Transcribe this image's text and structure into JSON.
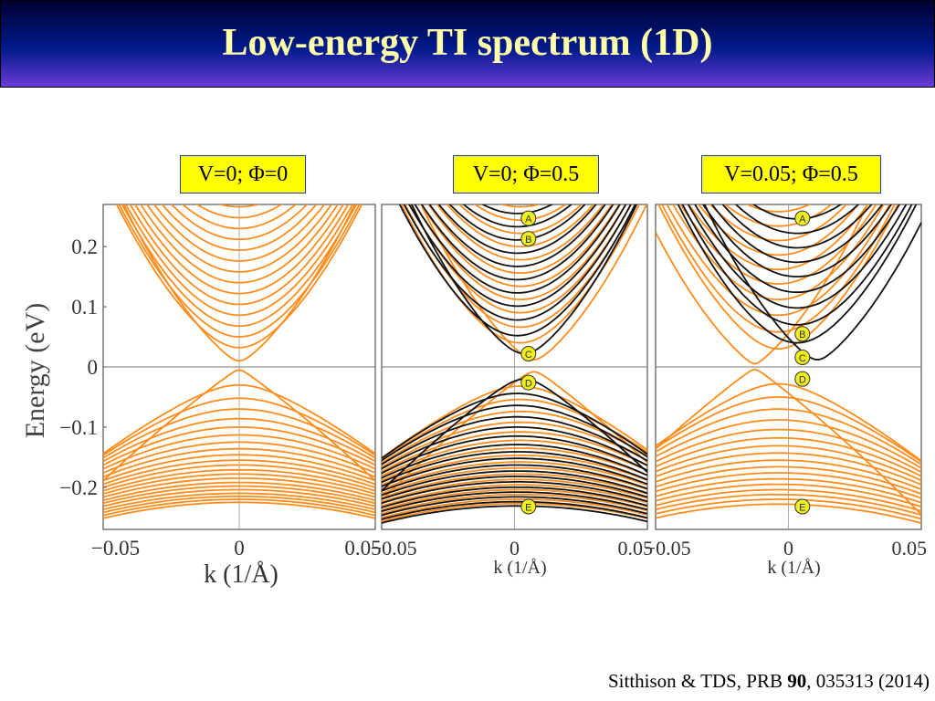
{
  "slide": {
    "title": "Low-energy TI spectrum (1D)",
    "citation": {
      "prefix": "Sitthison & TDS, PRB ",
      "volume": "90",
      "suffix": ", 035313 (2014)"
    }
  },
  "colors": {
    "orange_band": "#ff8c1a",
    "black_band": "#111111",
    "marker_fill": "#eeee22",
    "title_text": "#ffffaa",
    "caption_fill": "#ffff00"
  },
  "chart_data": [
    {
      "type": "line",
      "caption": "V=0; Φ=0",
      "xlabel": "k (1/Å)",
      "ylabel": "Energy (eV)",
      "xlim": [
        -0.055,
        0.055
      ],
      "ylim": [
        -0.27,
        0.27
      ],
      "xticks": [
        -0.05,
        0,
        0.05
      ],
      "xtick_labels": [
        "−0.05",
        "0",
        "0.05"
      ],
      "yticks": [
        0.2,
        0.1,
        0,
        -0.1,
        -0.2
      ],
      "ytick_labels": [
        "0.2",
        "0.1",
        "0",
        "−0.1",
        "−0.2"
      ],
      "markers": [],
      "series": [
        {
          "color": "orange",
          "gap_meV": 5,
          "kD": 0,
          "conduction_bottoms": [
            0.01,
            0.032,
            0.05,
            0.068,
            0.086,
            0.104,
            0.122,
            0.14,
            0.158,
            0.176,
            0.194,
            0.212,
            0.23,
            0.248,
            0.266
          ],
          "valence_tops": [
            -0.005,
            -0.03,
            -0.052,
            -0.07,
            -0.086,
            -0.1,
            -0.113,
            -0.125,
            -0.136,
            -0.146,
            -0.155,
            -0.163,
            -0.171,
            -0.178,
            -0.185,
            -0.192,
            -0.198,
            -0.204,
            -0.21,
            -0.215,
            -0.22,
            -0.225
          ]
        }
      ]
    },
    {
      "type": "line",
      "caption": "V=0; Φ=0.5",
      "xlabel": "k (1/Å)",
      "ylabel": "",
      "xlim": [
        -0.055,
        0.055
      ],
      "ylim": [
        -0.27,
        0.27
      ],
      "xticks": [
        -0.05,
        0,
        0.05
      ],
      "xtick_labels": [
        "−0.05",
        "0",
        "0.05"
      ],
      "yticks": [
        0.2,
        0.1,
        0,
        -0.1,
        -0.2
      ],
      "ytick_labels": [],
      "markers": [
        {
          "label": "A",
          "k": 0.002,
          "E": 0.247
        },
        {
          "label": "B",
          "k": 0.002,
          "E": 0.213
        },
        {
          "label": "C",
          "k": 0.002,
          "E": 0.022
        },
        {
          "label": "D",
          "k": 0.002,
          "E": -0.026
        },
        {
          "label": "E",
          "k": 0.002,
          "E": -0.232
        }
      ],
      "series": [
        {
          "color": "orange",
          "kD": 0.008,
          "conduction_bottoms": [
            0.012,
            0.04,
            0.066,
            0.09,
            0.112,
            0.134,
            0.156,
            0.178,
            0.2,
            0.222,
            0.244,
            0.266
          ],
          "valence_tops": [
            -0.008,
            -0.032,
            -0.054,
            -0.074,
            -0.092,
            -0.108,
            -0.122,
            -0.135,
            -0.147,
            -0.158,
            -0.168,
            -0.178,
            -0.187,
            -0.196,
            -0.204,
            -0.212,
            -0.22,
            -0.227
          ]
        },
        {
          "color": "black",
          "kD": 0.004,
          "conduction_bottoms": [
            0.022,
            0.052,
            0.078,
            0.101,
            0.123,
            0.145,
            0.167,
            0.189,
            0.211,
            0.233,
            0.255
          ],
          "valence_tops": [
            -0.02,
            -0.044,
            -0.064,
            -0.083,
            -0.1,
            -0.115,
            -0.129,
            -0.141,
            -0.152,
            -0.163,
            -0.173,
            -0.182,
            -0.191,
            -0.2,
            -0.208,
            -0.216,
            -0.224,
            -0.231
          ]
        }
      ]
    },
    {
      "type": "line",
      "caption": "V=0.05; Φ=0.5",
      "xlabel": "k (1/Å)",
      "ylabel": "",
      "xlim": [
        -0.055,
        0.055
      ],
      "ylim": [
        -0.27,
        0.27
      ],
      "xticks": [
        -0.05,
        0,
        0.05
      ],
      "xtick_labels": [
        "−0.05",
        "0",
        "0.05"
      ],
      "yticks": [
        0.2,
        0.1,
        0,
        -0.1,
        -0.2
      ],
      "ytick_labels": [],
      "markers": [
        {
          "label": "A",
          "k": 0.002,
          "E": 0.247
        },
        {
          "label": "B",
          "k": 0.002,
          "E": 0.055
        },
        {
          "label": "C",
          "k": 0.002,
          "E": 0.016
        },
        {
          "label": "D",
          "k": 0.002,
          "E": -0.02
        },
        {
          "label": "E",
          "k": 0.002,
          "E": -0.232
        }
      ],
      "series": [
        {
          "color": "orange",
          "kD": -0.014,
          "conduction_bottoms": [
            0.005,
            0.03,
            0.058,
            0.086,
            0.112,
            0.138,
            0.162,
            0.186,
            0.21,
            0.234,
            0.258
          ],
          "valence_tops": [
            -0.004,
            -0.028,
            -0.05,
            -0.07,
            -0.088,
            -0.104,
            -0.118,
            -0.131,
            -0.143,
            -0.155,
            -0.166,
            -0.176,
            -0.186,
            -0.195,
            -0.204,
            -0.212,
            -0.22,
            -0.228
          ]
        },
        {
          "color": "black",
          "kD": 0.012,
          "conduction_bottoms": [
            0.012,
            0.04,
            0.07,
            0.098,
            0.124,
            0.15,
            0.174,
            0.198,
            0.222,
            0.246
          ],
          "valence_tops": []
        }
      ]
    }
  ]
}
